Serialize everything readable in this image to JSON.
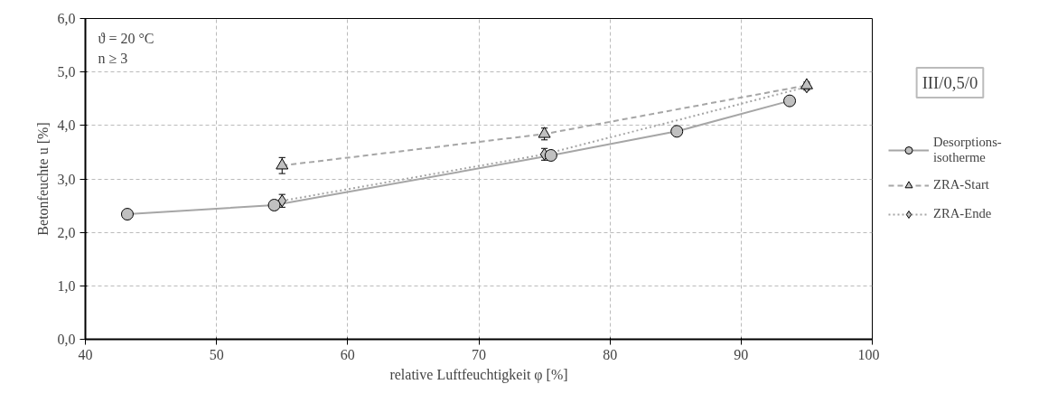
{
  "chart_data": {
    "type": "line",
    "xlabel": "relative Luftfeuchtigkeit φ [%]",
    "ylabel": "Betonfeuchte u [%]",
    "xlim": [
      40,
      100
    ],
    "xticks": [
      40,
      50,
      60,
      70,
      80,
      90,
      100
    ],
    "ylim": [
      0,
      6
    ],
    "yticks": [
      {
        "value": 0,
        "label": "0,0"
      },
      {
        "value": 1,
        "label": "1,0"
      },
      {
        "value": 2,
        "label": "2,0"
      },
      {
        "value": 3,
        "label": "3,0"
      },
      {
        "value": 4,
        "label": "4,0"
      },
      {
        "value": 5,
        "label": "5,0"
      },
      {
        "value": 6,
        "label": "6,0"
      }
    ],
    "grid": true,
    "legend": "right",
    "annotations": [
      "ϑ = 20 °C",
      "n ≥ 3",
      "III/0,5/0"
    ],
    "series": [
      {
        "name": "Desorptions-\nisotherme",
        "color": "#a6a6a6",
        "marker": "circle",
        "line_style": "solid",
        "x": [
          43.2,
          54.4,
          75.5,
          85.1,
          93.7
        ],
        "values": [
          2.34,
          2.51,
          3.44,
          3.89,
          4.46
        ]
      },
      {
        "name": "ZRA-Start",
        "color": "#a6a6a6",
        "marker": "triangle",
        "line_style": "dashed",
        "x": [
          55,
          75,
          95
        ],
        "values": [
          3.25,
          3.84,
          4.75
        ],
        "errors": [
          0.15,
          0.11,
          0.06
        ]
      },
      {
        "name": "ZRA-Ende",
        "color": "#a6a6a6",
        "marker": "diamond",
        "line_style": "dotted",
        "x": [
          55,
          75,
          95
        ],
        "values": [
          2.59,
          3.46,
          4.72
        ],
        "errors": [
          0.12,
          0.11,
          0.06
        ]
      }
    ]
  }
}
